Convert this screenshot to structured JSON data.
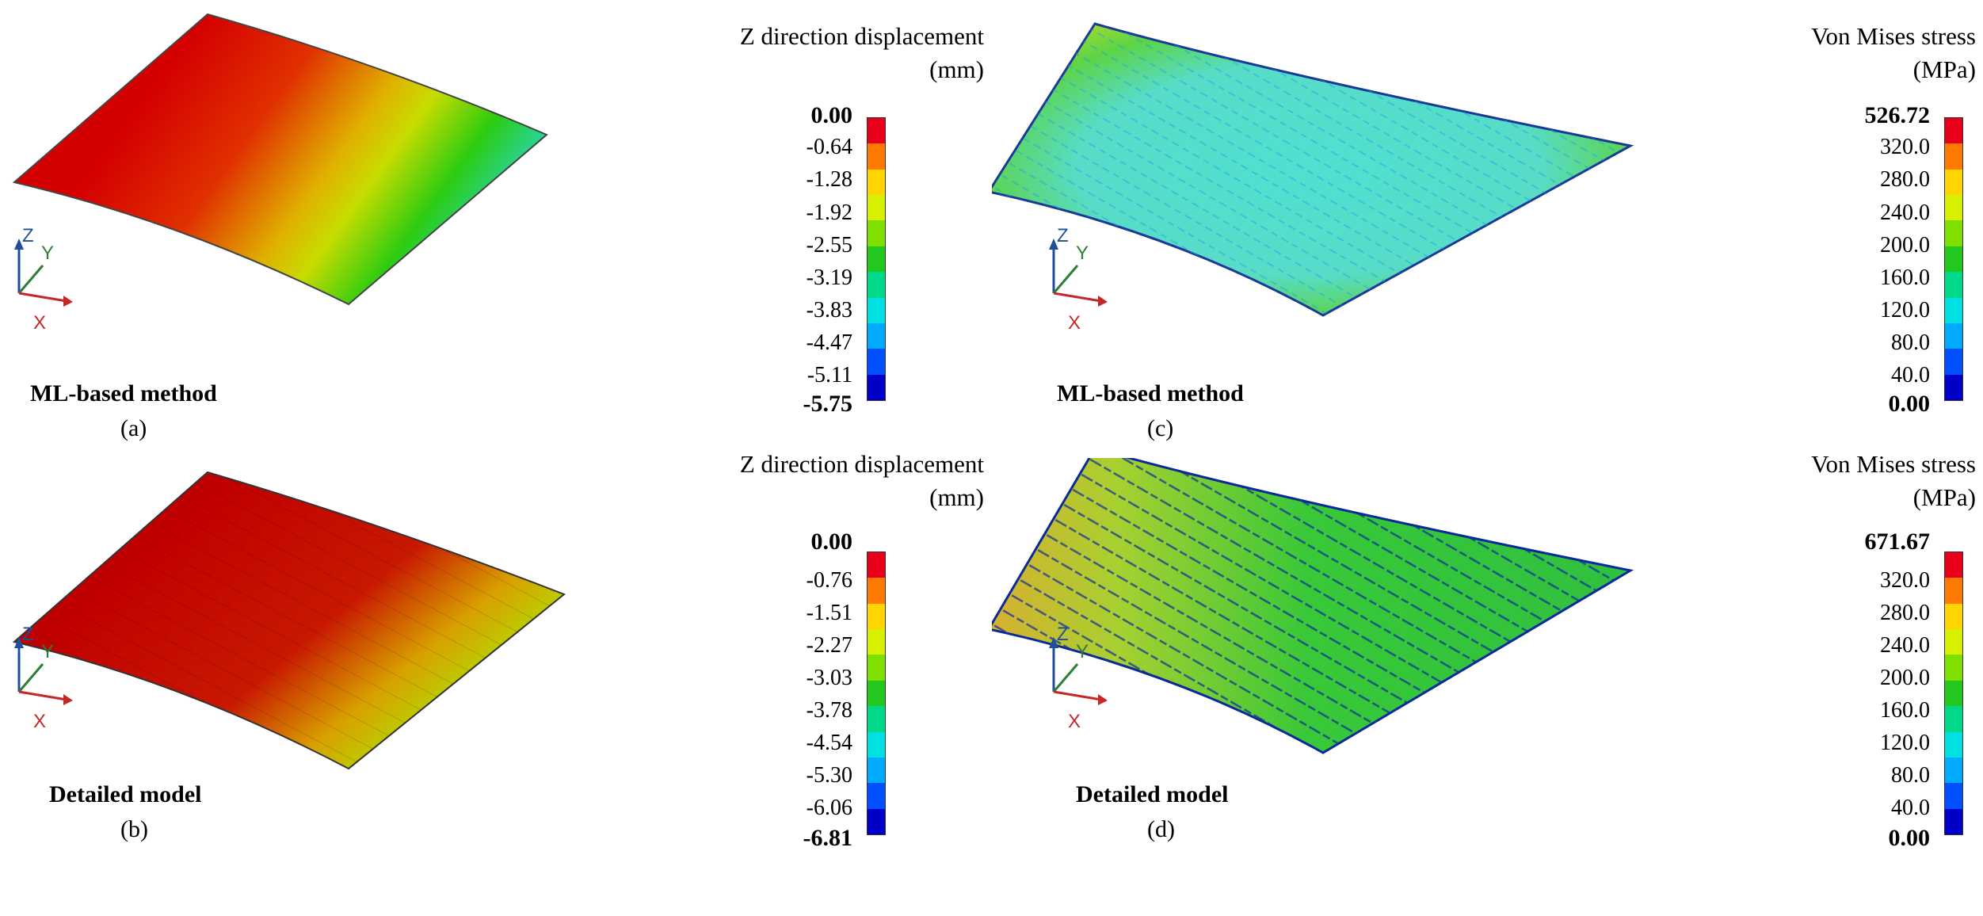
{
  "panels": [
    {
      "id": "a",
      "title": "Z direction displacement",
      "unit": "(mm)",
      "method": "ML-based method",
      "letter": "(a)",
      "max_label": "0.00",
      "min_label": "-5.75",
      "ticks": [
        "-0.64",
        "-1.28",
        "-1.92",
        "-2.55",
        "-3.19",
        "-3.83",
        "-4.47",
        "-5.11"
      ],
      "field": "displacement",
      "texture": "smooth"
    },
    {
      "id": "b",
      "title": "Z direction displacement",
      "unit": "(mm)",
      "method": "Detailed model",
      "letter": "(b)",
      "max_label": "0.00",
      "min_label": "-6.81",
      "ticks": [
        "-0.76",
        "-1.51",
        "-2.27",
        "-3.03",
        "-3.78",
        "-4.54",
        "-5.30",
        "-6.06"
      ],
      "field": "displacement",
      "texture": "stiffeners"
    },
    {
      "id": "c",
      "title": "Von Mises stress",
      "unit": "(MPa)",
      "method": "ML-based method",
      "letter": "(c)",
      "max_label": "526.72",
      "min_label": "0.00",
      "ticks": [
        "320.0",
        "280.0",
        "240.0",
        "200.0",
        "160.0",
        "120.0",
        "80.0",
        "40.0"
      ],
      "field": "stress",
      "texture": "smooth"
    },
    {
      "id": "d",
      "title": "Von Mises stress",
      "unit": "(MPa)",
      "method": "Detailed model",
      "letter": "(d)",
      "max_label": "671.67",
      "min_label": "0.00",
      "ticks": [
        "320.0",
        "280.0",
        "240.0",
        "200.0",
        "160.0",
        "120.0",
        "80.0",
        "40.0"
      ],
      "field": "stress",
      "texture": "stiffeners"
    }
  ],
  "triad": {
    "x": "X",
    "y": "Y",
    "z": "Z"
  },
  "colorbar_colors": [
    "#e8001a",
    "#ff7a00",
    "#ffd400",
    "#d6f000",
    "#7fe000",
    "#22c81e",
    "#00d88a",
    "#00e0e0",
    "#00aaff",
    "#0050ff",
    "#0000c8"
  ]
}
